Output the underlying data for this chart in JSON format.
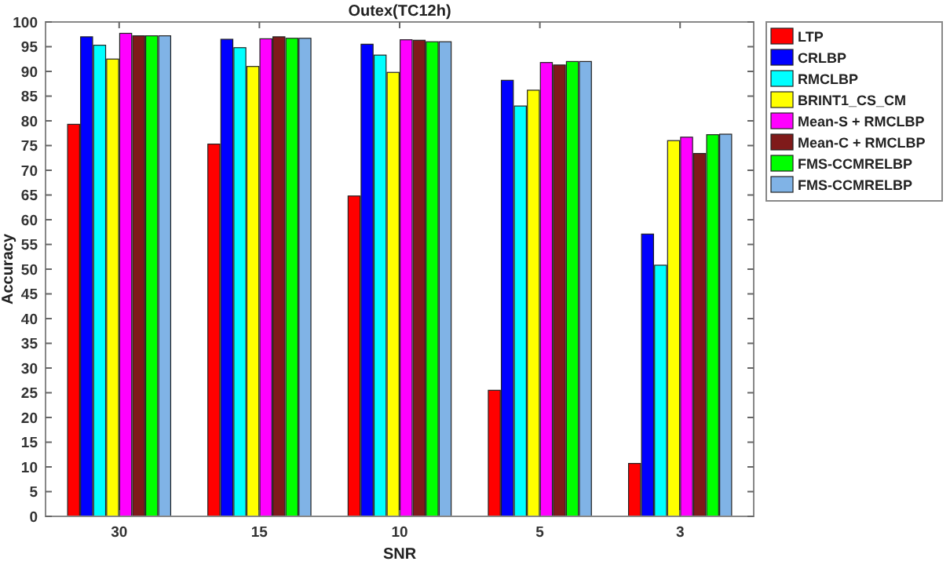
{
  "chart_data": {
    "type": "bar",
    "title": "Outex(TC12h)",
    "xlabel": "SNR",
    "ylabel": "Accuracy",
    "categories": [
      "30",
      "15",
      "10",
      "5",
      "3"
    ],
    "series": [
      {
        "name": "LTP",
        "color": "#ff0000",
        "values": [
          79.3,
          75.3,
          64.8,
          25.5,
          10.7
        ]
      },
      {
        "name": "CRLBP",
        "color": "#0000ff",
        "values": [
          97,
          96.5,
          95.5,
          88.2,
          57.1
        ]
      },
      {
        "name": "RMCLBP",
        "color": "#00ffff",
        "values": [
          95.3,
          94.8,
          93.3,
          83,
          50.8
        ]
      },
      {
        "name": "BRINT1_CS_CM",
        "color": "#ffff00",
        "values": [
          92.5,
          91,
          89.8,
          86.2,
          76
        ]
      },
      {
        "name": "Mean-S + RMCLBP",
        "color": "#ff00ff",
        "values": [
          97.7,
          96.6,
          96.4,
          91.8,
          76.7
        ]
      },
      {
        "name": "Mean-C + RMCLBP",
        "color": "#7f1a1a",
        "values": [
          97.2,
          97,
          96.3,
          91.3,
          73.4
        ]
      },
      {
        "name": "FMS-CCMRELBP",
        "color": "#00ff00",
        "values": [
          97.2,
          96.7,
          96,
          92,
          77.2
        ]
      },
      {
        "name": "FMS-CCMRELBP",
        "color": "#80b3e6",
        "values": [
          97.2,
          96.7,
          96,
          92,
          77.3
        ]
      }
    ],
    "ylim": [
      0,
      100
    ],
    "yticks": [
      0,
      5,
      10,
      15,
      20,
      25,
      30,
      35,
      40,
      45,
      50,
      55,
      60,
      65,
      70,
      75,
      80,
      85,
      90,
      95,
      100
    ],
    "grid": false,
    "legend": "top right"
  }
}
